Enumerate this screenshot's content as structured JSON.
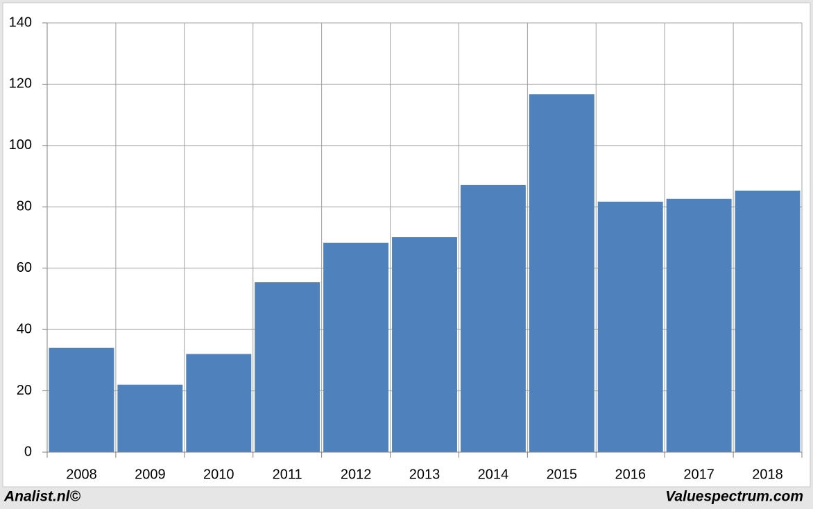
{
  "chart_data": {
    "type": "bar",
    "categories": [
      "2008",
      "2009",
      "2010",
      "2011",
      "2012",
      "2013",
      "2014",
      "2015",
      "2016",
      "2017",
      "2018"
    ],
    "values": [
      34,
      22,
      32,
      55.4,
      68.3,
      70.1,
      87.1,
      116.7,
      81.7,
      82.6,
      85.3
    ],
    "color": "#4f81bd",
    "ylim": [
      0,
      140
    ],
    "yticks": [
      0,
      20,
      40,
      60,
      80,
      100,
      120,
      140
    ],
    "grid": true,
    "credits": [
      "Analist.nl©",
      "Valuespectrum.com"
    ]
  }
}
